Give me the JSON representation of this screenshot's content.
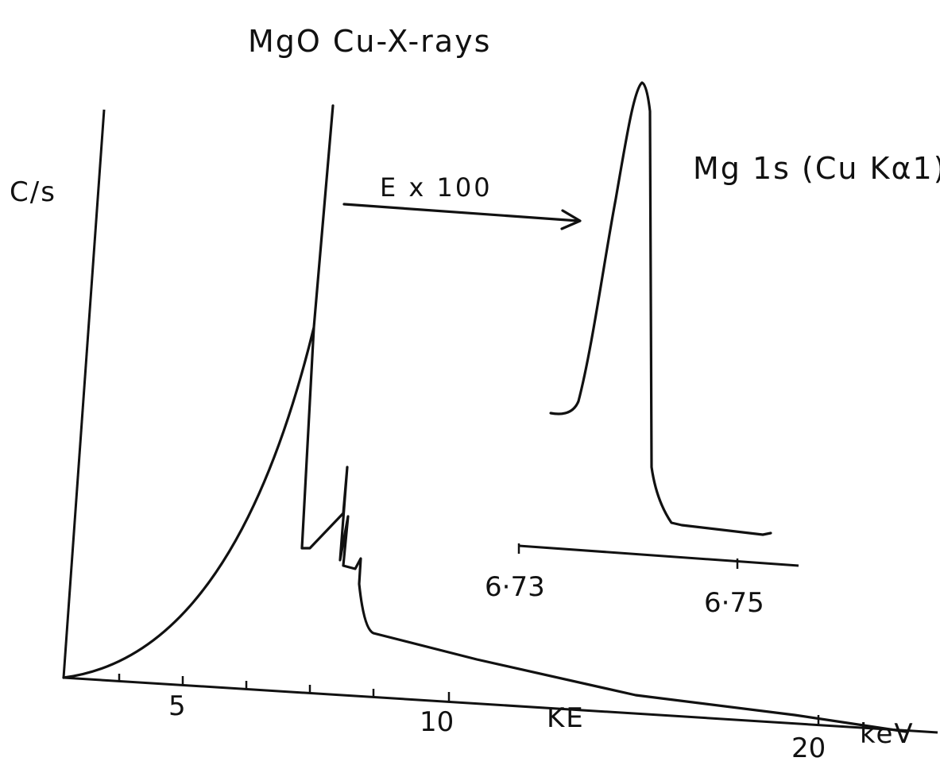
{
  "chart_data": [
    {
      "type": "line",
      "title": "MgO   Cu-X-rays",
      "ylabel": "C/s",
      "xlabel": "KE",
      "x_unit": "keV",
      "x_tick_labels": [
        "5",
        "10",
        "20"
      ],
      "annotation": "E x 100",
      "series": [
        {
          "x": [
            0.5,
            2,
            3.5,
            5,
            6.5,
            7.5,
            7.8,
            7.9,
            8.0,
            8.4,
            8.55,
            8.6,
            8.62,
            8.65,
            8.75,
            8.76,
            8.8,
            9.0,
            9.5,
            10,
            12,
            15,
            18,
            20,
            21.5
          ],
          "y": [
            0.0,
            0.07,
            0.2,
            0.38,
            0.62,
            0.84,
            1.0,
            0.12,
            0.12,
            0.16,
            0.19,
            0.5,
            0.12,
            0.28,
            0.11,
            0.1,
            0.25,
            0.09,
            0.08,
            0.075,
            0.06,
            0.04,
            0.02,
            0.01,
            0.0
          ]
        }
      ]
    },
    {
      "type": "line",
      "title": "Mg 1s (Cu Kα1)",
      "x_tick_labels": [
        "6·73",
        "6·75"
      ],
      "series": [
        {
          "x": [
            6.7305,
            6.7315,
            6.733,
            6.7345,
            6.736,
            6.7375,
            6.738,
            6.7385,
            6.739,
            6.7398,
            6.7405,
            6.7415,
            6.744,
            6.747,
            6.7475
          ],
          "y": [
            0.08,
            0.1,
            0.35,
            0.65,
            0.88,
            1.0,
            0.97,
            0.18,
            0.09,
            0.05,
            0.04,
            0.035,
            0.03,
            0.025,
            0.027
          ]
        }
      ]
    }
  ]
}
